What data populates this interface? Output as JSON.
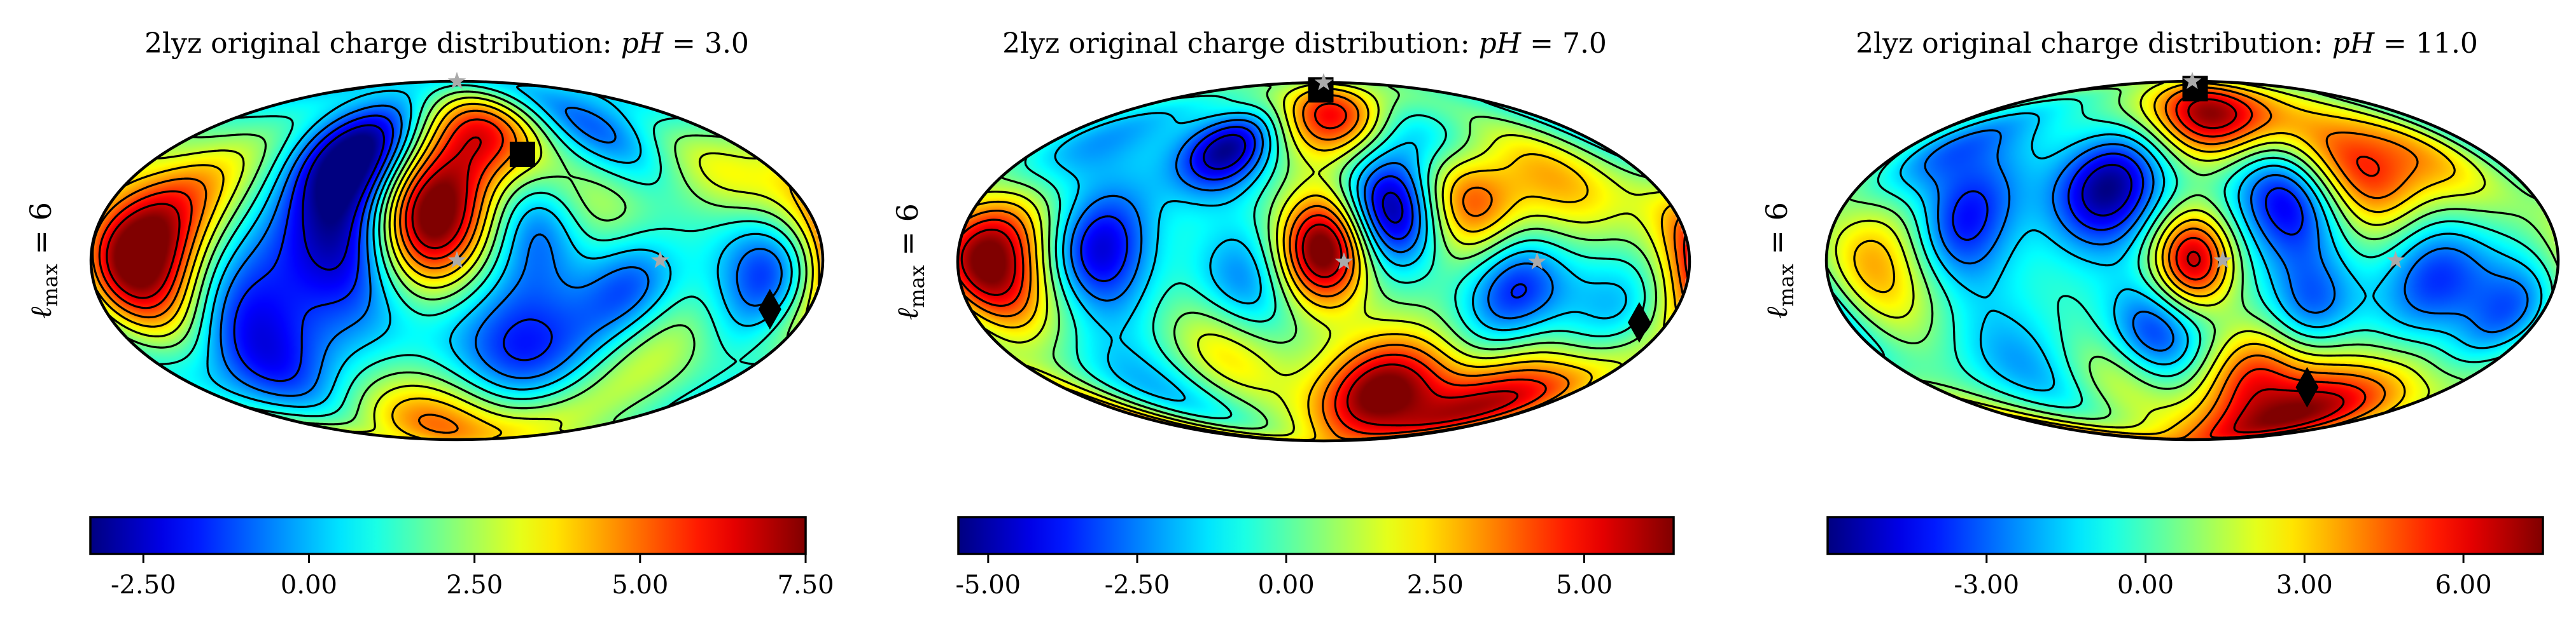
{
  "chart_data": [
    {
      "type": "heatmap",
      "projection": "mollweide",
      "title": "2lyz original charge distribution: pH = 3.0",
      "title_prefix": "2lyz original charge distribution: ",
      "title_var": "pH",
      "title_eq": " = 3.0",
      "ylabel": "ℓmax = 6",
      "ylabel_main": "ℓ",
      "ylabel_sub": "max",
      "ylabel_eq": " = 6",
      "colormap": "jet",
      "colorbar_range": [
        -3.3,
        7.5
      ],
      "colorbar_ticks": [
        -2.5,
        0.0,
        2.5,
        5.0,
        7.5
      ],
      "colorbar_ticklabels": [
        "-2.50",
        "0.00",
        "2.50",
        "5.00",
        "7.50"
      ],
      "markers": [
        {
          "shape": "square",
          "color": "#000000",
          "lon": 40,
          "lat": 45
        },
        {
          "shape": "diamond",
          "color": "#000000",
          "lon": 160,
          "lat": -20
        },
        {
          "shape": "star",
          "color": "#aaaaaa",
          "lon": 0,
          "lat": 0
        },
        {
          "shape": "star",
          "color": "#aaaaaa",
          "lon": 100,
          "lat": 0
        },
        {
          "shape": "star",
          "color": "#aaaaaa",
          "lon": 0,
          "lat": 90
        }
      ],
      "field_blobs": [
        {
          "lon": -155,
          "lat": 0,
          "amp": 9.0,
          "width": 25
        },
        {
          "lon": -15,
          "lat": 18,
          "amp": 9.0,
          "width": 22
        },
        {
          "lon": 20,
          "lat": 58,
          "amp": 5.5,
          "width": 18
        },
        {
          "lon": 70,
          "lat": 18,
          "amp": 4.8,
          "width": 26
        },
        {
          "lon": 145,
          "lat": 38,
          "amp": 3.5,
          "width": 20
        },
        {
          "lon": 110,
          "lat": -40,
          "amp": 3.2,
          "width": 25
        },
        {
          "lon": -20,
          "lat": -75,
          "amp": 6.0,
          "width": 22
        },
        {
          "lon": -125,
          "lat": 38,
          "amp": 2.0,
          "width": 22
        },
        {
          "lon": -60,
          "lat": 45,
          "amp": -4.5,
          "width": 18
        },
        {
          "lon": -50,
          "lat": 10,
          "amp": -3.8,
          "width": 22
        },
        {
          "lon": 45,
          "lat": 15,
          "amp": -3.5,
          "width": 18
        },
        {
          "lon": 85,
          "lat": -8,
          "amp": -4.0,
          "width": 18
        },
        {
          "lon": 155,
          "lat": -5,
          "amp": -3.0,
          "width": 18
        },
        {
          "lon": -115,
          "lat": -18,
          "amp": -2.5,
          "width": 24
        },
        {
          "lon": 40,
          "lat": -45,
          "amp": -3.0,
          "width": 25
        },
        {
          "lon": -120,
          "lat": -52,
          "amp": -2.0,
          "width": 22
        },
        {
          "lon": 95,
          "lat": 55,
          "amp": -3.2,
          "width": 20
        }
      ]
    },
    {
      "type": "heatmap",
      "projection": "mollweide",
      "title": "2lyz original charge distribution: pH = 7.0",
      "title_prefix": "2lyz original charge distribution: ",
      "title_var": "pH",
      "title_eq": " = 7.0",
      "ylabel": "ℓmax = 6",
      "ylabel_main": "ℓ",
      "ylabel_sub": "max",
      "ylabel_eq": " = 6",
      "colormap": "jet",
      "colorbar_range": [
        -5.5,
        6.5
      ],
      "colorbar_ticks": [
        -5.0,
        -2.5,
        0.0,
        2.5,
        5.0
      ],
      "colorbar_ticklabels": [
        "-5.00",
        "-2.50",
        "0.00",
        "2.50",
        "5.00"
      ],
      "markers": [
        {
          "shape": "square",
          "color": "#000000",
          "lon": -5,
          "lat": 82
        },
        {
          "shape": "diamond",
          "color": "#000000",
          "lon": 165,
          "lat": -25
        },
        {
          "shape": "star",
          "color": "#aaaaaa",
          "lon": 10,
          "lat": 0
        },
        {
          "shape": "star",
          "color": "#aaaaaa",
          "lon": 105,
          "lat": 0
        },
        {
          "shape": "star",
          "color": "#aaaaaa",
          "lon": 10,
          "lat": 90
        }
      ],
      "field_blobs": [
        {
          "lon": -165,
          "lat": 0,
          "amp": 7.5,
          "width": 20
        },
        {
          "lon": 0,
          "lat": 5,
          "amp": 7.5,
          "width": 16
        },
        {
          "lon": 15,
          "lat": 65,
          "amp": 7.0,
          "width": 16
        },
        {
          "lon": 75,
          "lat": 25,
          "amp": 5.0,
          "width": 18
        },
        {
          "lon": 130,
          "lat": 35,
          "amp": 3.0,
          "width": 20
        },
        {
          "lon": 40,
          "lat": -55,
          "amp": 6.5,
          "width": 18
        },
        {
          "lon": 140,
          "lat": -60,
          "amp": 7.0,
          "width": 22
        },
        {
          "lon": -55,
          "lat": -38,
          "amp": 3.0,
          "width": 18
        },
        {
          "lon": -60,
          "lat": 48,
          "amp": -5.5,
          "width": 14
        },
        {
          "lon": -110,
          "lat": 5,
          "amp": -4.5,
          "width": 18
        },
        {
          "lon": 35,
          "lat": 20,
          "amp": -5.5,
          "width": 16
        },
        {
          "lon": 55,
          "lat": 55,
          "amp": -4.5,
          "width": 18
        },
        {
          "lon": 95,
          "lat": -10,
          "amp": -4.0,
          "width": 18
        },
        {
          "lon": 150,
          "lat": -28,
          "amp": -3.5,
          "width": 22
        },
        {
          "lon": -40,
          "lat": -10,
          "amp": -3.0,
          "width": 18
        },
        {
          "lon": -150,
          "lat": 48,
          "amp": -2.5,
          "width": 20
        },
        {
          "lon": -120,
          "lat": -58,
          "amp": -2.5,
          "width": 22
        }
      ]
    },
    {
      "type": "heatmap",
      "projection": "mollweide",
      "title": "2lyz original charge distribution: pH = 11.0",
      "title_prefix": "2lyz original charge distribution: ",
      "title_var": "pH",
      "title_eq": " = 11.0",
      "ylabel": "ℓmax = 6",
      "ylabel_main": "ℓ",
      "ylabel_sub": "max",
      "ylabel_eq": " = 6",
      "colormap": "jet",
      "colorbar_range": [
        -6.0,
        7.5
      ],
      "colorbar_ticks": [
        -3.0,
        0.0,
        3.0,
        6.0
      ],
      "colorbar_ticklabels": [
        "-3.00",
        "0.00",
        "3.00",
        "6.00"
      ],
      "markers": [
        {
          "shape": "square",
          "color": "#000000",
          "lon": 5,
          "lat": 82
        },
        {
          "shape": "diamond",
          "color": "#000000",
          "lon": 80,
          "lat": -55
        },
        {
          "shape": "star",
          "color": "#aaaaaa",
          "lon": 15,
          "lat": 0
        },
        {
          "shape": "star",
          "color": "#aaaaaa",
          "lon": 100,
          "lat": 0
        },
        {
          "shape": "star",
          "color": "#aaaaaa",
          "lon": 15,
          "lat": 90
        }
      ],
      "field_blobs": [
        {
          "lon": -155,
          "lat": 0,
          "amp": 4.0,
          "width": 22
        },
        {
          "lon": 0,
          "lat": 0,
          "amp": 7.0,
          "width": 14
        },
        {
          "lon": 15,
          "lat": 65,
          "amp": 7.5,
          "width": 16
        },
        {
          "lon": 95,
          "lat": 35,
          "amp": 5.5,
          "width": 20
        },
        {
          "lon": 145,
          "lat": 45,
          "amp": 3.0,
          "width": 18
        },
        {
          "lon": 100,
          "lat": -70,
          "amp": 7.5,
          "width": 20
        },
        {
          "lon": 40,
          "lat": -45,
          "amp": 4.5,
          "width": 16
        },
        {
          "lon": -50,
          "lat": -50,
          "amp": 2.5,
          "width": 16
        },
        {
          "lon": -45,
          "lat": 30,
          "amp": -6.0,
          "width": 18
        },
        {
          "lon": -115,
          "lat": 15,
          "amp": -4.5,
          "width": 18
        },
        {
          "lon": 50,
          "lat": 25,
          "amp": -5.0,
          "width": 18
        },
        {
          "lon": 120,
          "lat": -5,
          "amp": -4.0,
          "width": 20
        },
        {
          "lon": 165,
          "lat": -20,
          "amp": -3.5,
          "width": 16
        },
        {
          "lon": -20,
          "lat": -30,
          "amp": -4.0,
          "width": 16
        },
        {
          "lon": 60,
          "lat": -20,
          "amp": -3.5,
          "width": 16
        },
        {
          "lon": -150,
          "lat": 45,
          "amp": -3.5,
          "width": 18
        },
        {
          "lon": -100,
          "lat": -45,
          "amp": -2.5,
          "width": 20
        }
      ]
    }
  ],
  "colors": {
    "outline": "#000000",
    "contour": "#000000",
    "star": "#aaaaaa",
    "marker": "#000000"
  }
}
